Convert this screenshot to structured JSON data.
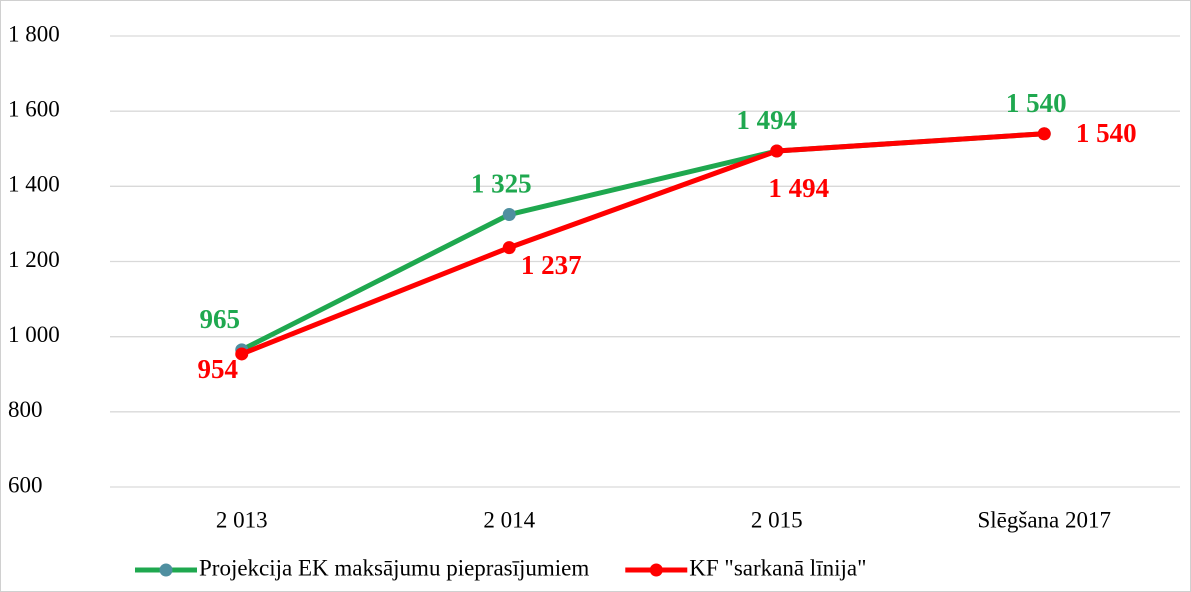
{
  "chart_data": {
    "type": "line",
    "categories": [
      "2 013",
      "2 014",
      "2 015",
      "Slēgšana 2017"
    ],
    "series": [
      {
        "name": "Projekcija EK maksājumu pieprasījumiem",
        "color": "#1fa84f",
        "marker_color": "#4f8fa0",
        "values": [
          965,
          1325,
          1494,
          1540
        ],
        "value_labels": [
          "965",
          "1 325",
          "1 494",
          "1 540"
        ]
      },
      {
        "name": "KF \"sarkanā līnija\"",
        "color": "#ff0000",
        "marker_color": "#ff0000",
        "values": [
          954,
          1237,
          1494,
          1540
        ],
        "value_labels": [
          "954",
          "1 237",
          "1 494",
          "1 540"
        ]
      }
    ],
    "ylim": [
      600,
      1800
    ],
    "yticks": [
      600,
      800,
      {
        "value": 1000,
        "label": "1 000"
      },
      {
        "value": 1200,
        "label": "1 200"
      },
      {
        "value": 1400,
        "label": "1 400"
      },
      {
        "value": 1600,
        "label": "1 600"
      },
      {
        "value": 1800,
        "label": "1 800"
      }
    ],
    "grid": true,
    "legend": "bottom"
  }
}
